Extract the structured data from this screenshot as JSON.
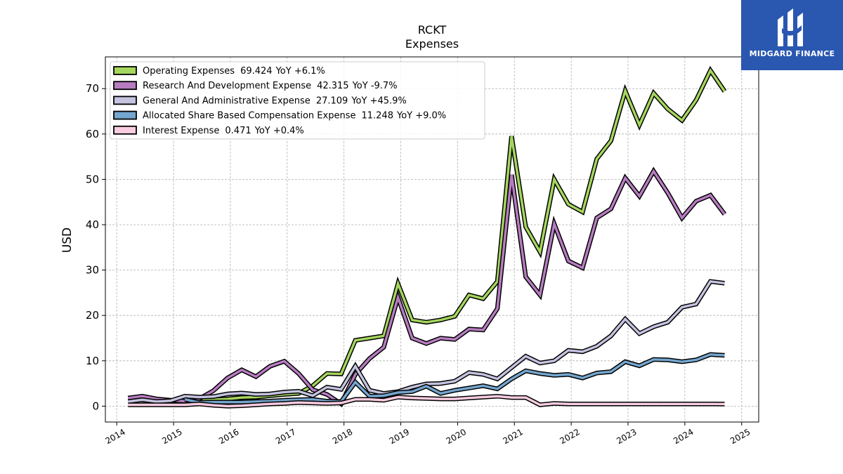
{
  "logo": {
    "text": "MIDGARD FINANCE"
  },
  "chart_data": {
    "type": "line",
    "title": "RCKT",
    "subtitle": "Expenses",
    "ylabel": "USD",
    "xlabel": "",
    "xlim": [
      2013.8,
      2025.3
    ],
    "ylim": [
      -3.5,
      77
    ],
    "x_ticks": [
      "2014",
      "2015",
      "2016",
      "2017",
      "2018",
      "2019",
      "2020",
      "2021",
      "2022",
      "2023",
      "2024",
      "2025"
    ],
    "y_ticks": [
      "0",
      "10",
      "20",
      "30",
      "40",
      "50",
      "60",
      "70"
    ],
    "grid": true,
    "legend_position": "top-left",
    "series": [
      {
        "name": "Operating Expenses",
        "legend_value": "69.424",
        "legend_yoy": "YoY +6.1%",
        "color": "#a5d65e",
        "points": [
          [
            2014.45,
            0.6
          ],
          [
            2015.2,
            0.8
          ],
          [
            2015.45,
            1.5
          ],
          [
            2015.7,
            1.4
          ],
          [
            2015.95,
            1.6
          ],
          [
            2016.2,
            1.9
          ],
          [
            2016.45,
            2.0
          ],
          [
            2016.7,
            2.3
          ],
          [
            2016.95,
            2.6
          ],
          [
            2017.2,
            2.8
          ],
          [
            2017.45,
            4.5
          ],
          [
            2017.7,
            7.2
          ],
          [
            2017.95,
            7.1
          ],
          [
            2018.2,
            14.5
          ],
          [
            2018.45,
            15.0
          ],
          [
            2018.7,
            15.5
          ],
          [
            2018.95,
            27.0
          ],
          [
            2019.2,
            19.0
          ],
          [
            2019.45,
            18.5
          ],
          [
            2019.7,
            19.0
          ],
          [
            2019.95,
            19.8
          ],
          [
            2020.2,
            24.5
          ],
          [
            2020.45,
            23.7
          ],
          [
            2020.7,
            27.5
          ],
          [
            2020.95,
            59.5
          ],
          [
            2021.2,
            39.5
          ],
          [
            2021.45,
            34.0
          ],
          [
            2021.7,
            50.0
          ],
          [
            2021.95,
            44.5
          ],
          [
            2022.2,
            42.8
          ],
          [
            2022.45,
            54.5
          ],
          [
            2022.7,
            58.5
          ],
          [
            2022.95,
            69.5
          ],
          [
            2023.2,
            62.0
          ],
          [
            2023.45,
            69.0
          ],
          [
            2023.7,
            65.5
          ],
          [
            2023.95,
            63.0
          ],
          [
            2024.2,
            67.5
          ],
          [
            2024.45,
            74.0
          ],
          [
            2024.7,
            69.4
          ]
        ]
      },
      {
        "name": "Research And Development Expense",
        "legend_value": "42.315",
        "legend_yoy": "YoY -9.7%",
        "color": "#b77cc1",
        "points": [
          [
            2014.2,
            1.8
          ],
          [
            2014.45,
            2.2
          ],
          [
            2014.7,
            1.6
          ],
          [
            2014.95,
            1.3
          ],
          [
            2015.2,
            1.1
          ],
          [
            2015.45,
            1.6
          ],
          [
            2015.7,
            3.4
          ],
          [
            2015.95,
            6.2
          ],
          [
            2016.2,
            8.0
          ],
          [
            2016.45,
            6.5
          ],
          [
            2016.7,
            8.8
          ],
          [
            2016.95,
            9.9
          ],
          [
            2017.2,
            7.2
          ],
          [
            2017.45,
            3.6
          ],
          [
            2017.7,
            2.6
          ],
          [
            2017.95,
            0.5
          ],
          [
            2018.2,
            7.0
          ],
          [
            2018.45,
            10.5
          ],
          [
            2018.7,
            13.0
          ],
          [
            2018.95,
            24.0
          ],
          [
            2019.2,
            15.0
          ],
          [
            2019.45,
            13.8
          ],
          [
            2019.7,
            15.0
          ],
          [
            2019.95,
            14.7
          ],
          [
            2020.2,
            17.0
          ],
          [
            2020.45,
            16.8
          ],
          [
            2020.7,
            21.5
          ],
          [
            2020.95,
            51.0
          ],
          [
            2021.2,
            28.5
          ],
          [
            2021.45,
            24.5
          ],
          [
            2021.7,
            40.2
          ],
          [
            2021.95,
            32.0
          ],
          [
            2022.2,
            30.5
          ],
          [
            2022.45,
            41.5
          ],
          [
            2022.7,
            43.5
          ],
          [
            2022.95,
            50.3
          ],
          [
            2023.2,
            46.3
          ],
          [
            2023.45,
            51.8
          ],
          [
            2023.7,
            47.0
          ],
          [
            2023.95,
            41.5
          ],
          [
            2024.2,
            45.2
          ],
          [
            2024.45,
            46.5
          ],
          [
            2024.7,
            42.3
          ]
        ]
      },
      {
        "name": "General And Administrative Expense",
        "legend_value": "27.109",
        "legend_yoy": "YoY +45.9%",
        "color": "#c4c3e0",
        "points": [
          [
            2014.2,
            1.0
          ],
          [
            2014.45,
            1.4
          ],
          [
            2014.7,
            1.0
          ],
          [
            2014.95,
            1.2
          ],
          [
            2015.2,
            2.2
          ],
          [
            2015.45,
            2.0
          ],
          [
            2015.7,
            2.1
          ],
          [
            2015.95,
            2.7
          ],
          [
            2016.2,
            2.9
          ],
          [
            2016.45,
            2.6
          ],
          [
            2016.7,
            2.7
          ],
          [
            2016.95,
            3.1
          ],
          [
            2017.2,
            3.3
          ],
          [
            2017.45,
            2.3
          ],
          [
            2017.7,
            4.2
          ],
          [
            2017.95,
            3.7
          ],
          [
            2018.2,
            8.8
          ],
          [
            2018.45,
            3.5
          ],
          [
            2018.7,
            2.8
          ],
          [
            2018.95,
            3.2
          ],
          [
            2019.2,
            4.2
          ],
          [
            2019.45,
            4.9
          ],
          [
            2019.7,
            5.0
          ],
          [
            2019.95,
            5.5
          ],
          [
            2020.2,
            7.4
          ],
          [
            2020.45,
            7.0
          ],
          [
            2020.7,
            6.0
          ],
          [
            2020.95,
            8.5
          ],
          [
            2021.2,
            11.0
          ],
          [
            2021.45,
            9.5
          ],
          [
            2021.7,
            10.0
          ],
          [
            2021.95,
            12.3
          ],
          [
            2022.2,
            12.0
          ],
          [
            2022.45,
            13.2
          ],
          [
            2022.7,
            15.5
          ],
          [
            2022.95,
            19.2
          ],
          [
            2023.2,
            16.0
          ],
          [
            2023.45,
            17.5
          ],
          [
            2023.7,
            18.5
          ],
          [
            2023.95,
            21.8
          ],
          [
            2024.2,
            22.5
          ],
          [
            2024.45,
            27.5
          ],
          [
            2024.7,
            27.1
          ]
        ]
      },
      {
        "name": "Allocated Share Based Compensation Expense",
        "legend_value": "11.248",
        "legend_yoy": "YoY +9.0%",
        "color": "#74a6cf",
        "points": [
          [
            2015.2,
            1.5
          ],
          [
            2015.45,
            0.8
          ],
          [
            2015.7,
            0.9
          ],
          [
            2015.95,
            0.9
          ],
          [
            2016.2,
            0.9
          ],
          [
            2016.45,
            1.0
          ],
          [
            2016.7,
            1.1
          ],
          [
            2016.95,
            1.3
          ],
          [
            2017.2,
            1.4
          ],
          [
            2017.45,
            1.5
          ],
          [
            2017.7,
            1.1
          ],
          [
            2017.95,
            1.0
          ],
          [
            2018.2,
            5.3
          ],
          [
            2018.45,
            2.2
          ],
          [
            2018.7,
            2.3
          ],
          [
            2018.95,
            3.0
          ],
          [
            2019.2,
            3.2
          ],
          [
            2019.45,
            4.4
          ],
          [
            2019.7,
            2.8
          ],
          [
            2019.95,
            3.5
          ],
          [
            2020.2,
            4.0
          ],
          [
            2020.45,
            4.5
          ],
          [
            2020.7,
            3.8
          ],
          [
            2020.95,
            6.0
          ],
          [
            2021.2,
            7.8
          ],
          [
            2021.45,
            7.2
          ],
          [
            2021.7,
            6.8
          ],
          [
            2021.95,
            7.0
          ],
          [
            2022.2,
            6.2
          ],
          [
            2022.45,
            7.3
          ],
          [
            2022.7,
            7.6
          ],
          [
            2022.95,
            9.8
          ],
          [
            2023.2,
            8.9
          ],
          [
            2023.45,
            10.3
          ],
          [
            2023.7,
            10.2
          ],
          [
            2023.95,
            9.8
          ],
          [
            2024.2,
            10.2
          ],
          [
            2024.45,
            11.4
          ],
          [
            2024.7,
            11.2
          ]
        ]
      },
      {
        "name": "Interest Expense",
        "legend_value": "0.471",
        "legend_yoy": "YoY +0.4%",
        "color": "#f9cce0",
        "points": [
          [
            2014.2,
            0.3
          ],
          [
            2014.45,
            0.3
          ],
          [
            2014.7,
            0.3
          ],
          [
            2014.95,
            0.3
          ],
          [
            2015.2,
            0.3
          ],
          [
            2015.45,
            0.5
          ],
          [
            2015.7,
            0.2
          ],
          [
            2015.95,
            0.0
          ],
          [
            2016.2,
            0.1
          ],
          [
            2016.45,
            0.3
          ],
          [
            2016.7,
            0.5
          ],
          [
            2016.95,
            0.6
          ],
          [
            2017.2,
            0.8
          ],
          [
            2017.45,
            0.7
          ],
          [
            2017.7,
            0.6
          ],
          [
            2017.95,
            0.7
          ],
          [
            2018.2,
            1.5
          ],
          [
            2018.45,
            1.5
          ],
          [
            2018.7,
            1.3
          ],
          [
            2018.95,
            2.0
          ],
          [
            2019.2,
            1.8
          ],
          [
            2019.45,
            1.7
          ],
          [
            2019.7,
            1.6
          ],
          [
            2019.95,
            1.6
          ],
          [
            2020.2,
            1.8
          ],
          [
            2020.45,
            2.0
          ],
          [
            2020.7,
            2.2
          ],
          [
            2020.95,
            1.9
          ],
          [
            2021.2,
            1.9
          ],
          [
            2021.45,
            0.3
          ],
          [
            2021.7,
            0.6
          ],
          [
            2021.95,
            0.5
          ],
          [
            2022.2,
            0.5
          ],
          [
            2022.45,
            0.5
          ],
          [
            2022.7,
            0.5
          ],
          [
            2022.95,
            0.5
          ],
          [
            2023.2,
            0.5
          ],
          [
            2023.45,
            0.5
          ],
          [
            2023.7,
            0.5
          ],
          [
            2023.95,
            0.5
          ],
          [
            2024.2,
            0.5
          ],
          [
            2024.45,
            0.5
          ],
          [
            2024.7,
            0.47
          ]
        ]
      }
    ]
  }
}
